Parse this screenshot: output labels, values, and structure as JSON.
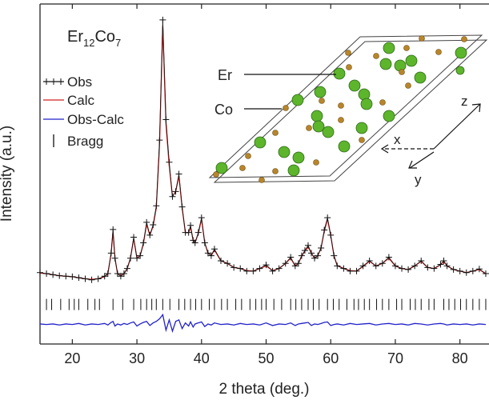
{
  "chart_data": {
    "type": "line",
    "xlabel": "2 theta (deg.)",
    "ylabel": "Intensity (a.u.)",
    "formula": [
      "Er",
      "12",
      "Co",
      "7"
    ],
    "xlim": [
      15,
      84.5
    ],
    "ylim": [
      -0.77,
      5.85
    ],
    "xticks": [
      20,
      30,
      40,
      50,
      60,
      70,
      80
    ],
    "x": [
      15,
      16,
      17,
      18,
      19,
      20,
      21,
      22,
      23,
      24,
      25,
      25.5,
      26,
      26.3,
      26.6,
      27,
      27.5,
      28,
      28.5,
      29,
      29.5,
      30,
      30.5,
      31,
      31.5,
      32,
      32.5,
      33,
      33.5,
      34,
      34.5,
      35,
      35.5,
      36,
      36.5,
      37,
      37.5,
      38,
      38.3,
      38.7,
      39,
      39.5,
      40,
      40.5,
      41,
      41.5,
      42,
      43,
      44,
      45,
      46,
      47,
      48,
      49,
      50,
      51,
      52,
      53,
      53.8,
      54.5,
      55,
      55.5,
      56,
      56.5,
      57,
      57.5,
      58,
      58.5,
      59,
      59.5,
      60,
      60.5,
      61,
      62,
      63,
      64,
      65,
      66,
      67,
      68,
      69,
      70,
      71,
      72,
      73,
      74,
      75,
      76,
      77,
      77.5,
      78,
      79,
      80,
      81,
      82,
      83,
      84
    ],
    "series": [
      {
        "name": "Obs",
        "color": "#111111",
        "marker": "+",
        "values": [
          0.62,
          0.6,
          0.58,
          0.56,
          0.55,
          0.54,
          0.52,
          0.5,
          0.48,
          0.5,
          0.55,
          0.6,
          1.0,
          1.46,
          0.9,
          0.6,
          0.55,
          0.6,
          0.7,
          0.9,
          1.31,
          0.9,
          0.95,
          1.2,
          1.6,
          1.35,
          1.55,
          1.92,
          3.2,
          5.54,
          3.6,
          2.77,
          2.1,
          2.2,
          2.54,
          1.9,
          1.4,
          1.4,
          1.54,
          1.25,
          1.2,
          1.4,
          1.69,
          1.2,
          1.0,
          0.95,
          1.08,
          0.85,
          0.8,
          0.72,
          0.7,
          0.65,
          0.65,
          0.7,
          0.77,
          0.65,
          0.7,
          0.8,
          0.92,
          0.75,
          0.8,
          0.95,
          1.05,
          1.15,
          1.0,
          0.9,
          0.95,
          1.1,
          1.45,
          1.69,
          1.35,
          0.95,
          0.75,
          0.7,
          0.65,
          0.65,
          0.75,
          0.85,
          0.75,
          0.8,
          0.92,
          0.75,
          0.7,
          0.68,
          0.75,
          0.85,
          0.72,
          0.7,
          0.78,
          0.85,
          0.75,
          0.68,
          0.65,
          0.62,
          0.65,
          0.69,
          0.6
        ]
      },
      {
        "name": "Calc",
        "color": "#d42020",
        "values": [
          0.61,
          0.6,
          0.58,
          0.56,
          0.55,
          0.54,
          0.52,
          0.5,
          0.49,
          0.5,
          0.54,
          0.6,
          0.98,
          1.42,
          0.9,
          0.6,
          0.56,
          0.6,
          0.7,
          0.9,
          1.28,
          0.9,
          0.95,
          1.18,
          1.56,
          1.35,
          1.52,
          1.88,
          3.1,
          5.42,
          3.5,
          2.7,
          2.1,
          2.2,
          2.5,
          1.88,
          1.4,
          1.4,
          1.5,
          1.25,
          1.2,
          1.38,
          1.66,
          1.2,
          1.0,
          0.95,
          1.06,
          0.85,
          0.8,
          0.72,
          0.7,
          0.66,
          0.65,
          0.7,
          0.75,
          0.66,
          0.7,
          0.8,
          0.9,
          0.75,
          0.8,
          0.94,
          1.04,
          1.12,
          1.0,
          0.9,
          0.95,
          1.1,
          1.42,
          1.66,
          1.34,
          0.95,
          0.76,
          0.7,
          0.66,
          0.65,
          0.74,
          0.84,
          0.75,
          0.8,
          0.9,
          0.75,
          0.7,
          0.68,
          0.75,
          0.84,
          0.72,
          0.7,
          0.77,
          0.84,
          0.75,
          0.68,
          0.65,
          0.62,
          0.65,
          0.68,
          0.6
        ]
      },
      {
        "name": "Obs-Calc",
        "color": "#2222cc",
        "values": [
          -0.38,
          -0.39,
          -0.38,
          -0.4,
          -0.38,
          -0.39,
          -0.37,
          -0.4,
          -0.38,
          -0.39,
          -0.37,
          -0.4,
          -0.35,
          -0.33,
          -0.42,
          -0.38,
          -0.4,
          -0.37,
          -0.39,
          -0.36,
          -0.34,
          -0.42,
          -0.38,
          -0.35,
          -0.33,
          -0.41,
          -0.36,
          -0.33,
          -0.28,
          -0.2,
          -0.5,
          -0.3,
          -0.52,
          -0.33,
          -0.3,
          -0.47,
          -0.36,
          -0.42,
          -0.34,
          -0.44,
          -0.38,
          -0.36,
          -0.34,
          -0.43,
          -0.38,
          -0.4,
          -0.36,
          -0.39,
          -0.38,
          -0.4,
          -0.37,
          -0.39,
          -0.38,
          -0.4,
          -0.36,
          -0.41,
          -0.38,
          -0.39,
          -0.36,
          -0.41,
          -0.38,
          -0.37,
          -0.36,
          -0.35,
          -0.41,
          -0.38,
          -0.39,
          -0.37,
          -0.35,
          -0.34,
          -0.41,
          -0.39,
          -0.38,
          -0.4,
          -0.37,
          -0.39,
          -0.38,
          -0.37,
          -0.4,
          -0.38,
          -0.37,
          -0.39,
          -0.38,
          -0.4,
          -0.37,
          -0.38,
          -0.4,
          -0.38,
          -0.37,
          -0.38,
          -0.4,
          -0.38,
          -0.39,
          -0.38,
          -0.4,
          -0.38,
          -0.39
        ]
      }
    ],
    "bragg": {
      "name": "Bragg",
      "color": "#111111",
      "level": 0.0,
      "positions": [
        16.0,
        16.8,
        18.2,
        19.5,
        20.3,
        21.0,
        22.4,
        23.5,
        24.2,
        26.3,
        27.8,
        29.5,
        30.6,
        31.5,
        32.3,
        33.0,
        34.0,
        35.1,
        36.5,
        37.4,
        38.3,
        39.1,
        40.0,
        41.2,
        42.0,
        43.1,
        44.0,
        45.3,
        46.2,
        47.5,
        48.4,
        49.3,
        50.0,
        51.2,
        52.4,
        53.8,
        54.6,
        55.5,
        56.5,
        57.3,
        58.2,
        59.5,
        60.4,
        61.3,
        62.5,
        63.6,
        64.3,
        65.2,
        66.0,
        67.1,
        68.0,
        69.0,
        70.2,
        71.0,
        72.3,
        73.1,
        74.0,
        75.2,
        76.0,
        77.5,
        78.3,
        79.2,
        80.1,
        81.0,
        82.0,
        83.0,
        84.0
      ]
    },
    "inset": {
      "atom_labels": [
        "Er",
        "Co"
      ],
      "axes": [
        "x",
        "y",
        "z"
      ]
    }
  }
}
